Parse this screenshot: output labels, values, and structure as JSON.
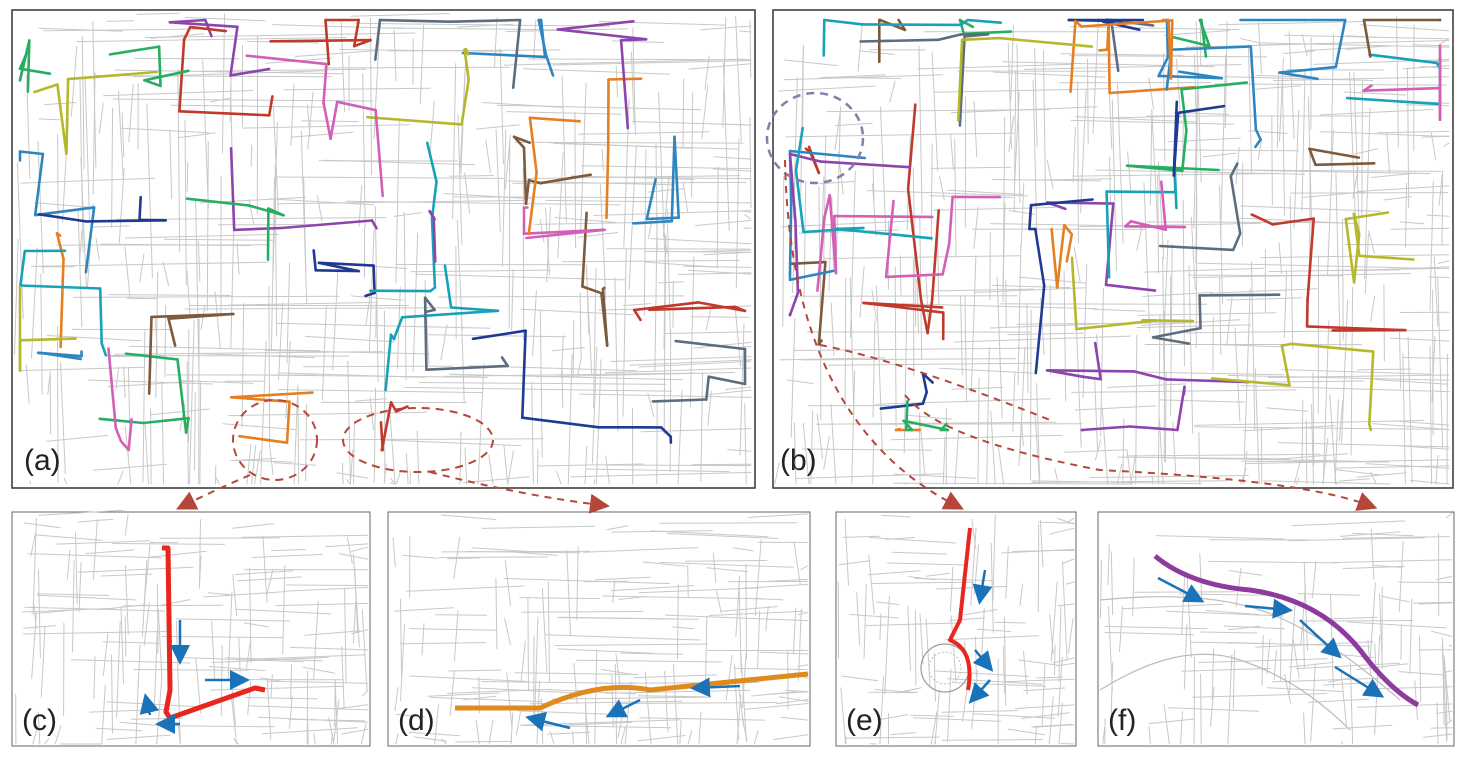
{
  "panels": [
    {
      "label": "(a)"
    },
    {
      "label": "(b)"
    },
    {
      "label": "(c)"
    },
    {
      "label": "(d)"
    },
    {
      "label": "(e)"
    },
    {
      "label": "(f)"
    }
  ],
  "colors": {
    "road": "#c8c8c8",
    "road_dark": "#9a9a9a",
    "callout": "#b5473a",
    "highlight_red": "#e8261e",
    "highlight_orange": "#e08a1e",
    "highlight_purple": "#8e3a9e",
    "arrow_blue": "#1a73b8",
    "route_palette": [
      "#c0392b",
      "#2e86c1",
      "#27ae60",
      "#8e44ad",
      "#e67e22",
      "#7d5a3c",
      "#17a2b8",
      "#b5b82a",
      "#d35fb7",
      "#1f3a93",
      "#5d6d7e"
    ]
  },
  "icons": {
    "arrow": "arrow-icon",
    "zoom_callout": "dashed-ellipse-icon"
  }
}
